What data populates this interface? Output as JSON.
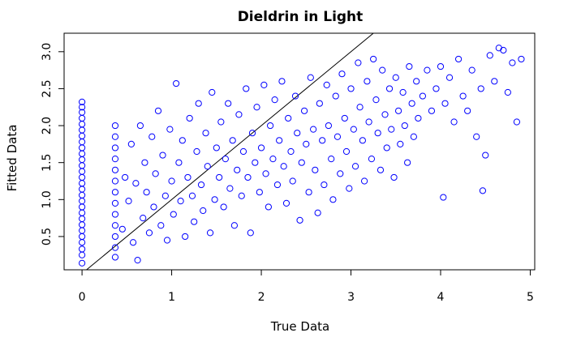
{
  "chart_data": {
    "type": "scatter",
    "title": "Dieldrin in Light",
    "xlabel": "True Data",
    "ylabel": "Fitted Data",
    "xlim": [
      -0.2,
      5.05
    ],
    "ylim": [
      0.05,
      3.25
    ],
    "x_ticks": [
      0,
      1,
      2,
      3,
      4,
      5
    ],
    "y_ticks": [
      0.5,
      1.0,
      1.5,
      2.0,
      2.5,
      3.0
    ],
    "x_tick_labels": [
      "0",
      "1",
      "2",
      "3",
      "4",
      "5"
    ],
    "y_tick_labels": [
      "0.5",
      "1.0",
      "1.5",
      "2.0",
      "2.5",
      "3.0"
    ],
    "grid": false,
    "point_color": "#0000FF",
    "reference_line": {
      "slope": 1,
      "intercept": 0,
      "color": "#000000"
    },
    "series": [
      {
        "values": [
          [
            0,
            0.14
          ],
          [
            0,
            0.25
          ],
          [
            0,
            0.33
          ],
          [
            0,
            0.42
          ],
          [
            0,
            0.5
          ],
          [
            0,
            0.58
          ],
          [
            0,
            0.66
          ],
          [
            0,
            0.74
          ],
          [
            0,
            0.82
          ],
          [
            0,
            0.9
          ],
          [
            0,
            0.98
          ],
          [
            0,
            1.06
          ],
          [
            0,
            1.14
          ],
          [
            0,
            1.22
          ],
          [
            0,
            1.3
          ],
          [
            0,
            1.38
          ],
          [
            0,
            1.46
          ],
          [
            0,
            1.54
          ],
          [
            0,
            1.62
          ],
          [
            0,
            1.7
          ],
          [
            0,
            1.78
          ],
          [
            0,
            1.86
          ],
          [
            0,
            1.94
          ],
          [
            0,
            2.02
          ],
          [
            0,
            2.1
          ],
          [
            0,
            2.18
          ],
          [
            0,
            2.25
          ],
          [
            0,
            2.32
          ],
          [
            0.37,
            0.22
          ],
          [
            0.37,
            0.35
          ],
          [
            0.37,
            0.5
          ],
          [
            0.37,
            0.65
          ],
          [
            0.37,
            0.8
          ],
          [
            0.37,
            0.95
          ],
          [
            0.37,
            1.1
          ],
          [
            0.37,
            1.25
          ],
          [
            0.37,
            1.4
          ],
          [
            0.37,
            1.55
          ],
          [
            0.37,
            1.7
          ],
          [
            0.37,
            1.85
          ],
          [
            0.37,
            2.0
          ],
          [
            0.45,
            0.6
          ],
          [
            0.48,
            1.3
          ],
          [
            0.52,
            0.98
          ],
          [
            0.55,
            1.75
          ],
          [
            0.57,
            0.42
          ],
          [
            0.6,
            1.22
          ],
          [
            0.62,
            0.18
          ],
          [
            0.65,
            2.0
          ],
          [
            0.68,
            0.75
          ],
          [
            0.7,
            1.5
          ],
          [
            0.72,
            1.1
          ],
          [
            0.75,
            0.55
          ],
          [
            0.78,
            1.85
          ],
          [
            0.8,
            0.9
          ],
          [
            0.82,
            1.35
          ],
          [
            0.85,
            2.2
          ],
          [
            0.88,
            0.65
          ],
          [
            0.9,
            1.6
          ],
          [
            0.93,
            1.05
          ],
          [
            0.95,
            0.45
          ],
          [
            0.98,
            1.95
          ],
          [
            1.0,
            1.25
          ],
          [
            1.02,
            0.8
          ],
          [
            1.05,
            2.57
          ],
          [
            1.08,
            1.5
          ],
          [
            1.1,
            0.98
          ],
          [
            1.12,
            1.8
          ],
          [
            1.15,
            0.5
          ],
          [
            1.18,
            1.3
          ],
          [
            1.2,
            2.1
          ],
          [
            1.23,
            1.05
          ],
          [
            1.25,
            0.7
          ],
          [
            1.28,
            1.65
          ],
          [
            1.3,
            2.3
          ],
          [
            1.33,
            1.2
          ],
          [
            1.35,
            0.85
          ],
          [
            1.38,
            1.9
          ],
          [
            1.4,
            1.45
          ],
          [
            1.43,
            0.55
          ],
          [
            1.45,
            2.45
          ],
          [
            1.48,
            1.0
          ],
          [
            1.5,
            1.7
          ],
          [
            1.53,
            1.3
          ],
          [
            1.55,
            2.05
          ],
          [
            1.58,
            0.9
          ],
          [
            1.6,
            1.55
          ],
          [
            1.63,
            2.3
          ],
          [
            1.65,
            1.15
          ],
          [
            1.68,
            1.8
          ],
          [
            1.7,
            0.65
          ],
          [
            1.73,
            1.4
          ],
          [
            1.75,
            2.15
          ],
          [
            1.78,
            1.05
          ],
          [
            1.8,
            1.65
          ],
          [
            1.83,
            2.5
          ],
          [
            1.85,
            1.3
          ],
          [
            1.88,
            0.55
          ],
          [
            1.9,
            1.9
          ],
          [
            1.93,
            1.5
          ],
          [
            1.95,
            2.25
          ],
          [
            1.98,
            1.1
          ],
          [
            2.0,
            1.7
          ],
          [
            2.03,
            2.55
          ],
          [
            2.05,
            1.35
          ],
          [
            2.08,
            0.9
          ],
          [
            2.1,
            2.0
          ],
          [
            2.13,
            1.55
          ],
          [
            2.15,
            2.35
          ],
          [
            2.18,
            1.2
          ],
          [
            2.2,
            1.8
          ],
          [
            2.23,
            2.6
          ],
          [
            2.25,
            1.45
          ],
          [
            2.28,
            0.95
          ],
          [
            2.3,
            2.1
          ],
          [
            2.33,
            1.65
          ],
          [
            2.35,
            1.25
          ],
          [
            2.38,
            2.4
          ],
          [
            2.4,
            1.9
          ],
          [
            2.43,
            0.72
          ],
          [
            2.45,
            1.5
          ],
          [
            2.48,
            2.2
          ],
          [
            2.5,
            1.75
          ],
          [
            2.53,
            1.1
          ],
          [
            2.55,
            2.65
          ],
          [
            2.58,
            1.95
          ],
          [
            2.6,
            1.4
          ],
          [
            2.63,
            0.82
          ],
          [
            2.65,
            2.3
          ],
          [
            2.68,
            1.8
          ],
          [
            2.7,
            1.2
          ],
          [
            2.73,
            2.55
          ],
          [
            2.75,
            2.0
          ],
          [
            2.78,
            1.55
          ],
          [
            2.8,
            1.0
          ],
          [
            2.83,
            2.4
          ],
          [
            2.85,
            1.85
          ],
          [
            2.88,
            1.35
          ],
          [
            2.9,
            2.7
          ],
          [
            2.93,
            2.1
          ],
          [
            2.95,
            1.65
          ],
          [
            2.98,
            1.15
          ],
          [
            3.0,
            2.5
          ],
          [
            3.03,
            1.95
          ],
          [
            3.05,
            1.45
          ],
          [
            3.08,
            2.85
          ],
          [
            3.1,
            2.25
          ],
          [
            3.13,
            1.8
          ],
          [
            3.15,
            1.25
          ],
          [
            3.18,
            2.6
          ],
          [
            3.2,
            2.05
          ],
          [
            3.23,
            1.55
          ],
          [
            3.25,
            2.9
          ],
          [
            3.28,
            2.35
          ],
          [
            3.3,
            1.9
          ],
          [
            3.33,
            1.4
          ],
          [
            3.35,
            2.75
          ],
          [
            3.38,
            2.15
          ],
          [
            3.4,
            1.7
          ],
          [
            3.43,
            2.5
          ],
          [
            3.45,
            1.95
          ],
          [
            3.48,
            1.3
          ],
          [
            3.5,
            2.65
          ],
          [
            3.53,
            2.2
          ],
          [
            3.55,
            1.75
          ],
          [
            3.58,
            2.45
          ],
          [
            3.6,
            2.0
          ],
          [
            3.63,
            1.5
          ],
          [
            3.65,
            2.8
          ],
          [
            3.68,
            2.3
          ],
          [
            3.7,
            1.85
          ],
          [
            3.73,
            2.6
          ],
          [
            3.75,
            2.1
          ],
          [
            3.8,
            2.4
          ],
          [
            3.85,
            2.75
          ],
          [
            3.9,
            2.2
          ],
          [
            3.95,
            2.5
          ],
          [
            4.0,
            2.8
          ],
          [
            4.03,
            1.03
          ],
          [
            4.05,
            2.3
          ],
          [
            4.1,
            2.65
          ],
          [
            4.15,
            2.05
          ],
          [
            4.2,
            2.9
          ],
          [
            4.25,
            2.4
          ],
          [
            4.3,
            2.2
          ],
          [
            4.35,
            2.75
          ],
          [
            4.4,
            1.85
          ],
          [
            4.45,
            2.5
          ],
          [
            4.47,
            1.12
          ],
          [
            4.5,
            1.6
          ],
          [
            4.55,
            2.95
          ],
          [
            4.6,
            2.6
          ],
          [
            4.65,
            3.05
          ],
          [
            4.7,
            3.02
          ],
          [
            4.75,
            2.45
          ],
          [
            4.8,
            2.85
          ],
          [
            4.85,
            2.05
          ],
          [
            4.9,
            2.9
          ]
        ]
      }
    ]
  }
}
